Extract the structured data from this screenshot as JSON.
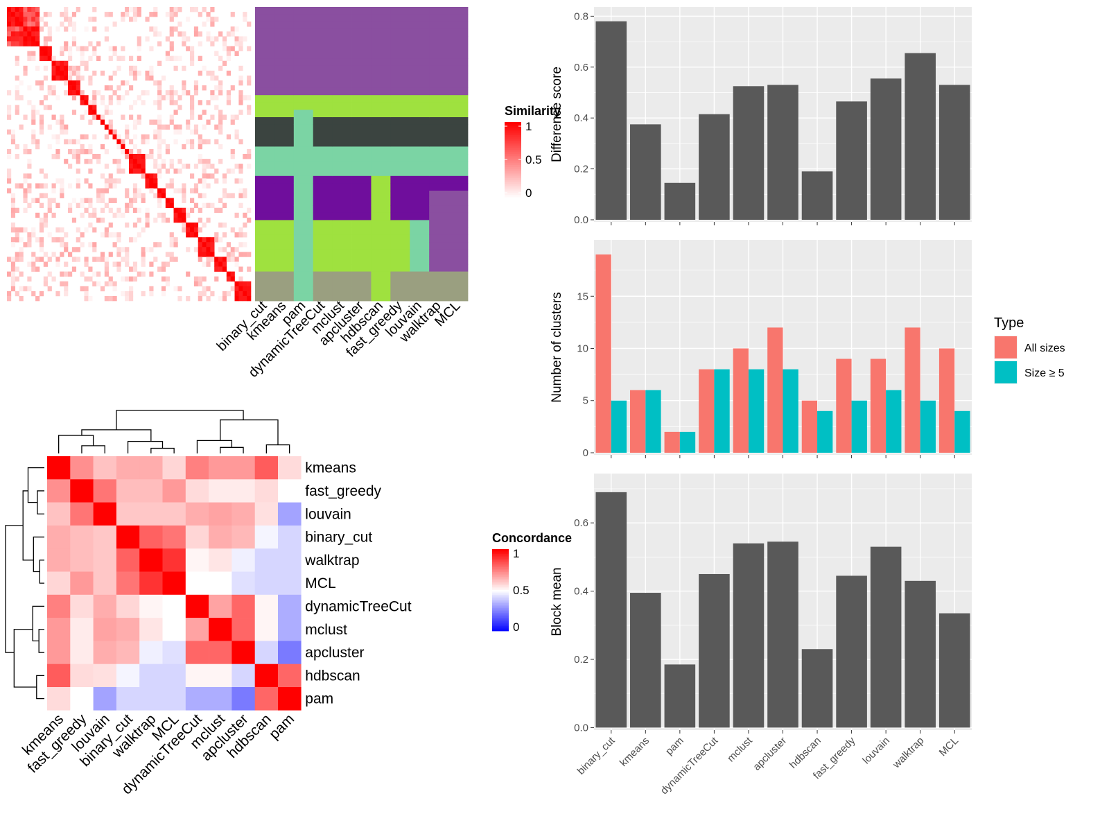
{
  "colors": {
    "panel_bg": "#ebebeb",
    "grid": "#ffffff",
    "bar": "#595959",
    "all_sizes": "#f8766d",
    "size_ge5": "#00bfc4",
    "heat_high": "#ff0000",
    "heat_mid": "#ffffff",
    "heat_low": "#0000ff",
    "axis_text": "#4d4d4d"
  },
  "chart_data": [
    {
      "type": "heatmap",
      "id": "similarity-heatmap",
      "legend_title": "Similarity",
      "legend_ticks": [
        "1",
        "0.5",
        "0"
      ],
      "legend_position": "right",
      "annotation_columns": [
        "binary_cut",
        "kmeans",
        "pam",
        "dynamicTreeCut",
        "mclust",
        "apcluster",
        "hdbscan",
        "fast_greedy",
        "louvain",
        "walktrap",
        "MCL"
      ],
      "n_items": 60,
      "block_sizes": [
        4,
        4,
        3,
        4,
        3,
        2,
        2,
        1,
        1,
        1,
        1,
        1,
        1,
        1,
        1,
        4,
        3,
        2,
        2,
        3,
        3,
        4,
        3,
        2,
        4
      ]
    },
    {
      "type": "heatmap",
      "id": "concordance-heatmap",
      "legend_title": "Concordance",
      "legend_ticks": [
        "1",
        "0.5",
        "0"
      ],
      "legend_position": "right",
      "rows": [
        "kmeans",
        "fast_greedy",
        "louvain",
        "binary_cut",
        "walktrap",
        "MCL",
        "dynamicTreeCut",
        "mclust",
        "apcluster",
        "hdbscan",
        "pam"
      ],
      "columns": [
        "kmeans",
        "fast_greedy",
        "louvain",
        "binary_cut",
        "walktrap",
        "MCL",
        "dynamicTreeCut",
        "mclust",
        "apcluster",
        "hdbscan",
        "pam"
      ],
      "values": [
        [
          1.0,
          0.72,
          0.62,
          0.66,
          0.66,
          0.58,
          0.75,
          0.7,
          0.7,
          0.82,
          0.57
        ],
        [
          0.72,
          1.0,
          0.77,
          0.63,
          0.63,
          0.7,
          0.57,
          0.54,
          0.54,
          0.57,
          0.5
        ],
        [
          0.62,
          0.77,
          1.0,
          0.61,
          0.61,
          0.61,
          0.66,
          0.68,
          0.66,
          0.56,
          0.32
        ],
        [
          0.66,
          0.63,
          0.61,
          1.0,
          0.81,
          0.77,
          0.58,
          0.66,
          0.64,
          0.48,
          0.42
        ],
        [
          0.66,
          0.63,
          0.61,
          0.81,
          1.0,
          0.9,
          0.52,
          0.55,
          0.47,
          0.42,
          0.42
        ],
        [
          0.58,
          0.7,
          0.61,
          0.77,
          0.9,
          1.0,
          0.5,
          0.5,
          0.44,
          0.42,
          0.42
        ],
        [
          0.75,
          0.57,
          0.66,
          0.58,
          0.52,
          0.5,
          1.0,
          0.68,
          0.8,
          0.52,
          0.34
        ],
        [
          0.7,
          0.54,
          0.68,
          0.66,
          0.55,
          0.5,
          0.68,
          1.0,
          0.8,
          0.52,
          0.34
        ],
        [
          0.7,
          0.54,
          0.66,
          0.64,
          0.47,
          0.44,
          0.8,
          0.8,
          1.0,
          0.42,
          0.24
        ],
        [
          0.82,
          0.57,
          0.56,
          0.48,
          0.42,
          0.42,
          0.52,
          0.52,
          0.42,
          1.0,
          0.8
        ],
        [
          0.57,
          0.5,
          0.32,
          0.42,
          0.42,
          0.42,
          0.34,
          0.34,
          0.24,
          0.8,
          1.0
        ]
      ]
    },
    {
      "type": "bar",
      "id": "difference-score",
      "categories": [
        "binary_cut",
        "kmeans",
        "pam",
        "dynamicTreeCut",
        "mclust",
        "apcluster",
        "hdbscan",
        "fast_greedy",
        "louvain",
        "walktrap",
        "MCL"
      ],
      "values": [
        0.78,
        0.375,
        0.145,
        0.415,
        0.525,
        0.53,
        0.19,
        0.465,
        0.555,
        0.655,
        0.53
      ],
      "ylabel": "Difference score",
      "ylim": [
        0,
        0.82
      ],
      "yticks": [
        "0.0",
        "0.2",
        "0.4",
        "0.6",
        "0.8"
      ],
      "grid": true
    },
    {
      "type": "bar",
      "id": "number-of-clusters",
      "categories": [
        "binary_cut",
        "kmeans",
        "pam",
        "dynamicTreeCut",
        "mclust",
        "apcluster",
        "hdbscan",
        "fast_greedy",
        "louvain",
        "walktrap",
        "MCL"
      ],
      "series": [
        {
          "name": "All sizes",
          "values": [
            19,
            6,
            2,
            8,
            10,
            12,
            5,
            9,
            9,
            12,
            10
          ]
        },
        {
          "name": "Size ≥ 5",
          "values": [
            5,
            6,
            2,
            8,
            8,
            8,
            4,
            5,
            6,
            5,
            4
          ]
        }
      ],
      "ylabel": "Number of clusters",
      "ylim": [
        0,
        20
      ],
      "yticks": [
        "0",
        "5",
        "10",
        "15"
      ],
      "legend_title": "Type",
      "legend_position": "right",
      "grid": true
    },
    {
      "type": "bar",
      "id": "block-mean",
      "categories": [
        "binary_cut",
        "kmeans",
        "pam",
        "dynamicTreeCut",
        "mclust",
        "apcluster",
        "hdbscan",
        "fast_greedy",
        "louvain",
        "walktrap",
        "MCL"
      ],
      "values": [
        0.69,
        0.395,
        0.185,
        0.45,
        0.54,
        0.545,
        0.23,
        0.445,
        0.53,
        0.43,
        0.335
      ],
      "ylabel": "Block mean",
      "ylim": [
        0,
        0.73
      ],
      "yticks": [
        "0.0",
        "0.2",
        "0.4",
        "0.6"
      ],
      "grid": true
    }
  ]
}
